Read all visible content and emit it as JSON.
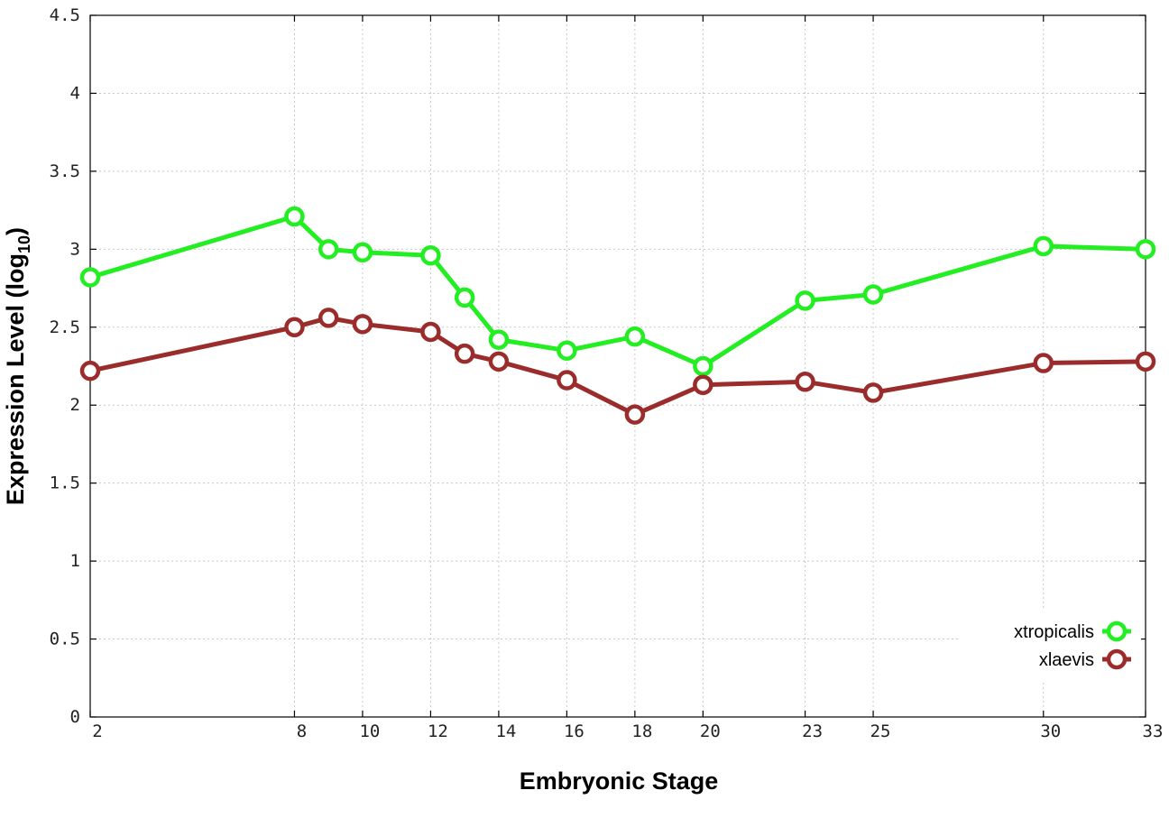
{
  "chart_data": {
    "type": "line",
    "xlabel": "Embryonic Stage",
    "ylabel_main": "Expression Level (log",
    "ylabel_sub": "10",
    "ylabel_close": ")",
    "xlim": [
      2,
      33
    ],
    "ylim": [
      0,
      4.5
    ],
    "x_ticks": [
      2,
      8,
      10,
      12,
      14,
      16,
      18,
      20,
      23,
      25,
      30,
      33
    ],
    "y_ticks": [
      0,
      0.5,
      1,
      1.5,
      2,
      2.5,
      3,
      3.5,
      4,
      4.5
    ],
    "y_tick_labels": [
      "0",
      "0.5",
      "1",
      "1.5",
      "2",
      "2.5",
      "3",
      "3.5",
      "4",
      "4.5"
    ],
    "grid": true,
    "legend_position": "bottom-right",
    "x": [
      2,
      8,
      9,
      10,
      12,
      13,
      14,
      16,
      18,
      20,
      23,
      25,
      30,
      33
    ],
    "series": [
      {
        "name": "xtropicalis",
        "color": "#22ee22",
        "values": [
          2.82,
          3.21,
          3.0,
          2.98,
          2.96,
          2.69,
          2.42,
          2.35,
          2.44,
          2.25,
          2.67,
          2.71,
          3.02,
          3.0
        ]
      },
      {
        "name": "xlaevis",
        "color": "#9b2c2c",
        "values": [
          2.22,
          2.5,
          2.56,
          2.52,
          2.47,
          2.33,
          2.28,
          2.16,
          1.94,
          2.13,
          2.15,
          2.08,
          2.27,
          2.28
        ]
      }
    ]
  }
}
